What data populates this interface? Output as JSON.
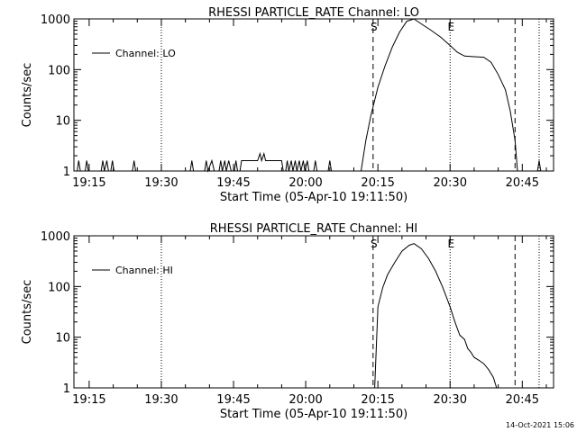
{
  "footer_timestamp": "14-Oct-2021 15:06",
  "chart_data": [
    {
      "type": "line",
      "title": "RHESSI PARTICLE_RATE Channel: LO",
      "xlabel": "Start Time (05-Apr-10 19:11:50)",
      "ylabel": "Counts/sec",
      "yscale": "log",
      "ylim": [
        1,
        1000
      ],
      "xlim": [
        "19:11:50",
        "20:51:30"
      ],
      "x_ticks": [
        "19:15",
        "19:30",
        "19:45",
        "20:00",
        "20:15",
        "20:30",
        "20:45"
      ],
      "y_ticks": [
        "1",
        "10",
        "100",
        "1000"
      ],
      "legend": {
        "position": "top-left",
        "entries": [
          "Channel: LO"
        ]
      },
      "series": [
        {
          "name": "Channel: LO",
          "points": [
            [
              "19:12:30",
              1
            ],
            [
              "19:12:50",
              1.6
            ],
            [
              "19:13:10",
              1
            ],
            [
              "19:14:10",
              1
            ],
            [
              "19:14:30",
              1.6
            ],
            [
              "19:14:50",
              1
            ],
            [
              "19:17:30",
              1
            ],
            [
              "19:17:50",
              1.6
            ],
            [
              "19:18:10",
              1
            ],
            [
              "19:18:40",
              1.6
            ],
            [
              "19:19:00",
              1
            ],
            [
              "19:19:30",
              1
            ],
            [
              "19:19:50",
              1.6
            ],
            [
              "19:20:10",
              1
            ],
            [
              "19:24:00",
              1
            ],
            [
              "19:24:20",
              1.6
            ],
            [
              "19:24:40",
              1
            ],
            [
              "19:36:00",
              1
            ],
            [
              "19:36:20",
              1.6
            ],
            [
              "19:36:40",
              1
            ],
            [
              "19:39:00",
              1
            ],
            [
              "19:39:20",
              1.6
            ],
            [
              "19:39:40",
              1
            ],
            [
              "19:40:30",
              1.6
            ],
            [
              "19:41:00",
              1
            ],
            [
              "19:42:00",
              1
            ],
            [
              "19:42:20",
              1.6
            ],
            [
              "19:42:40",
              1
            ],
            [
              "19:43:10",
              1.6
            ],
            [
              "19:43:30",
              1
            ],
            [
              "19:44:00",
              1.6
            ],
            [
              "19:44:30",
              1
            ],
            [
              "19:45:10",
              1
            ],
            [
              "19:45:30",
              1.6
            ],
            [
              "19:45:50",
              1
            ],
            [
              "19:46:20",
              1
            ],
            [
              "19:46:40",
              1.6
            ],
            [
              "19:50:00",
              1.6
            ],
            [
              "19:50:30",
              2.2
            ],
            [
              "19:50:50",
              1.6
            ],
            [
              "19:51:20",
              2.2
            ],
            [
              "19:51:40",
              1.6
            ],
            [
              "19:52:10",
              1.6
            ],
            [
              "19:55:00",
              1.6
            ],
            [
              "19:55:20",
              1
            ],
            [
              "19:55:50",
              1
            ],
            [
              "19:56:10",
              1.6
            ],
            [
              "19:56:30",
              1
            ],
            [
              "19:57:00",
              1.6
            ],
            [
              "19:57:20",
              1
            ],
            [
              "19:57:50",
              1.6
            ],
            [
              "19:58:10",
              1
            ],
            [
              "19:58:40",
              1.6
            ],
            [
              "19:59:00",
              1
            ],
            [
              "19:59:30",
              1.6
            ],
            [
              "19:59:50",
              1
            ],
            [
              "20:00:20",
              1.6
            ],
            [
              "20:00:40",
              1
            ],
            [
              "20:01:40",
              1
            ],
            [
              "20:02:00",
              1.6
            ],
            [
              "20:02:20",
              1
            ],
            [
              "20:04:40",
              1
            ],
            [
              "20:05:00",
              1.6
            ],
            [
              "20:05:20",
              1
            ],
            [
              "20:11:30",
              1
            ],
            [
              "20:12:30",
              4
            ],
            [
              "20:13:30",
              12
            ],
            [
              "20:15:00",
              45
            ],
            [
              "20:16:30",
              120
            ],
            [
              "20:18:00",
              280
            ],
            [
              "20:19:30",
              550
            ],
            [
              "20:21:00",
              900
            ],
            [
              "20:22:30",
              1000
            ],
            [
              "20:24:00",
              800
            ],
            [
              "20:26:00",
              600
            ],
            [
              "20:28:00",
              440
            ],
            [
              "20:30:00",
              300
            ],
            [
              "20:31:30",
              220
            ],
            [
              "20:33:00",
              185
            ],
            [
              "20:35:00",
              180
            ],
            [
              "20:37:00",
              175
            ],
            [
              "20:38:30",
              140
            ],
            [
              "20:40:00",
              80
            ],
            [
              "20:41:30",
              40
            ],
            [
              "20:42:30",
              15
            ],
            [
              "20:43:30",
              4
            ],
            [
              "20:44:00",
              1
            ],
            [
              "20:48:10",
              1
            ],
            [
              "20:48:30",
              1.6
            ],
            [
              "20:48:50",
              1
            ]
          ]
        }
      ],
      "markers": [
        {
          "time": "20:14:00",
          "style": "dashed",
          "label": "S"
        },
        {
          "time": "20:30:00",
          "style": "dotted",
          "label": "E"
        },
        {
          "time": "19:30:00",
          "style": "dotted",
          "label": ""
        },
        {
          "time": "20:43:30",
          "style": "dashed",
          "label": ""
        },
        {
          "time": "20:48:30",
          "style": "dotted",
          "label": ""
        }
      ]
    },
    {
      "type": "line",
      "title": "RHESSI PARTICLE_RATE Channel: HI",
      "xlabel": "Start Time (05-Apr-10 19:11:50)",
      "ylabel": "Counts/sec",
      "yscale": "log",
      "ylim": [
        1,
        1000
      ],
      "xlim": [
        "19:11:50",
        "20:51:30"
      ],
      "x_ticks": [
        "19:15",
        "19:30",
        "19:45",
        "20:00",
        "20:15",
        "20:30",
        "20:45"
      ],
      "y_ticks": [
        "1",
        "10",
        "100",
        "1000"
      ],
      "legend": {
        "position": "top-left",
        "entries": [
          "Channel: HI"
        ]
      },
      "series": [
        {
          "name": "Channel: HI",
          "points": [
            [
              "20:14:20",
              1
            ],
            [
              "20:15:00",
              40
            ],
            [
              "20:16:00",
              95
            ],
            [
              "20:17:00",
              170
            ],
            [
              "20:18:30",
              300
            ],
            [
              "20:20:00",
              500
            ],
            [
              "20:21:30",
              650
            ],
            [
              "20:22:30",
              700
            ],
            [
              "20:24:00",
              560
            ],
            [
              "20:25:30",
              360
            ],
            [
              "20:27:00",
              200
            ],
            [
              "20:28:30",
              95
            ],
            [
              "20:30:00",
              40
            ],
            [
              "20:31:00",
              20
            ],
            [
              "20:32:00",
              11
            ],
            [
              "20:33:00",
              9
            ],
            [
              "20:33:40",
              6
            ],
            [
              "20:34:20",
              5
            ],
            [
              "20:35:00",
              4
            ],
            [
              "20:36:00",
              3.5
            ],
            [
              "20:37:00",
              3
            ],
            [
              "20:38:00",
              2.3
            ],
            [
              "20:39:00",
              1.6
            ],
            [
              "20:39:40",
              1
            ]
          ]
        }
      ],
      "markers": [
        {
          "time": "20:14:00",
          "style": "dashed",
          "label": "S"
        },
        {
          "time": "20:30:00",
          "style": "dotted",
          "label": "E"
        },
        {
          "time": "19:30:00",
          "style": "dotted",
          "label": ""
        },
        {
          "time": "20:43:30",
          "style": "dashed",
          "label": ""
        },
        {
          "time": "20:48:30",
          "style": "dotted",
          "label": ""
        }
      ]
    }
  ]
}
